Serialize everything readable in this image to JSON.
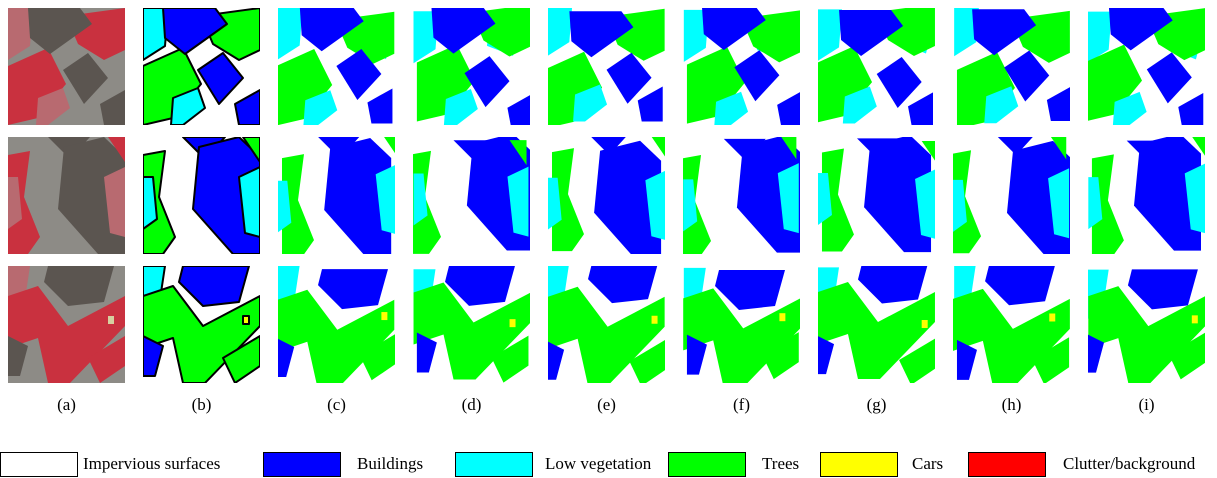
{
  "figure": {
    "column_labels": [
      "(a)",
      "(b)",
      "(c)",
      "(d)",
      "(e)",
      "(f)",
      "(g)",
      "(h)",
      "(i)"
    ],
    "legend": [
      {
        "label": "Impervious surfaces",
        "color": "#ffffff"
      },
      {
        "label": "Buildings",
        "color": "#0000ff"
      },
      {
        "label": "Low vegetation",
        "color": "#00ffff"
      },
      {
        "label": "Trees",
        "color": "#00ff00"
      },
      {
        "label": "Cars",
        "color": "#ffff00"
      },
      {
        "label": "Clutter/background",
        "color": "#ff0000"
      }
    ]
  }
}
